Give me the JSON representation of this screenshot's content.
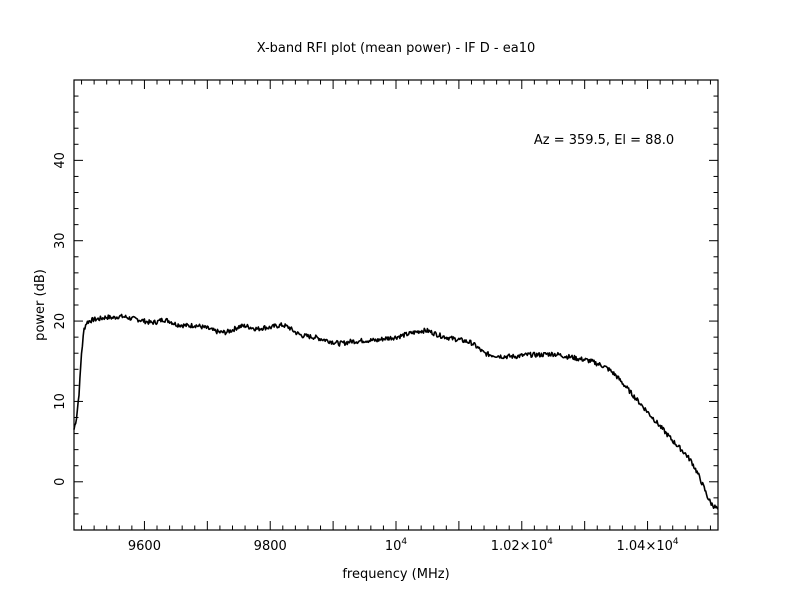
{
  "chart_data": {
    "type": "line",
    "title": "X-band RFI plot (mean power) - IF D - ea10",
    "xlabel": "frequency (MHz)",
    "ylabel": "power (dB)",
    "annotation": "Az = 359.5, El = 88.0",
    "xlim": [
      9488,
      10512
    ],
    "ylim": [
      -6,
      50
    ],
    "grid": false,
    "line_color": "#000000",
    "x_ticks": [
      {
        "value": 9600,
        "label": "9600"
      },
      {
        "value": 9800,
        "label": "9800"
      },
      {
        "value": 10000,
        "label": "10",
        "sup": "4"
      },
      {
        "value": 10200,
        "label": "1.02×10",
        "sup": "4"
      },
      {
        "value": 10400,
        "label": "1.04×10",
        "sup": "4"
      }
    ],
    "y_ticks": [
      {
        "value": 0,
        "label": "0"
      },
      {
        "value": 10,
        "label": "10"
      },
      {
        "value": 20,
        "label": "20"
      },
      {
        "value": 30,
        "label": "30"
      },
      {
        "value": 40,
        "label": "40"
      }
    ],
    "series": [
      {
        "x": [
          9488,
          9492,
          9496,
          9500,
          9504,
          9508,
          9512,
          9520,
          9530,
          9540,
          9550,
          9560,
          9570,
          9580,
          9590,
          9600,
          9610,
          9620,
          9630,
          9640,
          9650,
          9660,
          9670,
          9680,
          9690,
          9700,
          9710,
          9720,
          9730,
          9740,
          9750,
          9760,
          9770,
          9780,
          9790,
          9800,
          9810,
          9820,
          9830,
          9840,
          9850,
          9860,
          9870,
          9880,
          9890,
          9900,
          9910,
          9920,
          9930,
          9940,
          9950,
          9960,
          9970,
          9980,
          9990,
          10000,
          10010,
          10020,
          10030,
          10040,
          10050,
          10060,
          10070,
          10080,
          10090,
          10100,
          10110,
          10120,
          10130,
          10140,
          10150,
          10160,
          10170,
          10180,
          10190,
          10200,
          10210,
          10220,
          10230,
          10240,
          10250,
          10260,
          10270,
          10280,
          10290,
          10300,
          10310,
          10320,
          10330,
          10340,
          10350,
          10360,
          10370,
          10380,
          10390,
          10400,
          10410,
          10420,
          10430,
          10440,
          10450,
          10460,
          10470,
          10480,
          10490,
          10495,
          10500,
          10505,
          10508,
          10512
        ],
        "y": [
          6.5,
          8,
          11,
          16,
          19,
          19.8,
          20,
          20.2,
          20.3,
          20.5,
          20.4,
          20.6,
          20.5,
          20.3,
          20.2,
          20.0,
          19.8,
          19.9,
          20.2,
          20.0,
          19.6,
          19.5,
          19.4,
          19.5,
          19.3,
          19.1,
          18.8,
          18.6,
          18.6,
          18.9,
          19.3,
          19.4,
          19.2,
          19.0,
          19.2,
          19.2,
          19.4,
          19.5,
          19.2,
          18.6,
          18.2,
          18.1,
          18.0,
          17.8,
          17.6,
          17.4,
          17.2,
          17.3,
          17.5,
          17.5,
          17.6,
          17.6,
          17.6,
          17.8,
          17.9,
          18.0,
          18.2,
          18.4,
          18.6,
          18.8,
          18.8,
          18.5,
          18.2,
          18.0,
          17.8,
          17.7,
          17.5,
          17.3,
          16.7,
          16.0,
          15.8,
          15.7,
          15.6,
          15.6,
          15.6,
          15.7,
          15.8,
          15.8,
          15.8,
          15.9,
          15.9,
          15.8,
          15.6,
          15.5,
          15.3,
          15.2,
          15.0,
          14.7,
          14.4,
          13.9,
          13.2,
          12.3,
          11.4,
          10.5,
          9.6,
          8.7,
          7.8,
          6.9,
          6.0,
          5.1,
          4.3,
          3.5,
          2.5,
          1.0,
          -0.8,
          -1.8,
          -2.6,
          -3.0,
          -3.2,
          -3.4
        ]
      }
    ]
  }
}
